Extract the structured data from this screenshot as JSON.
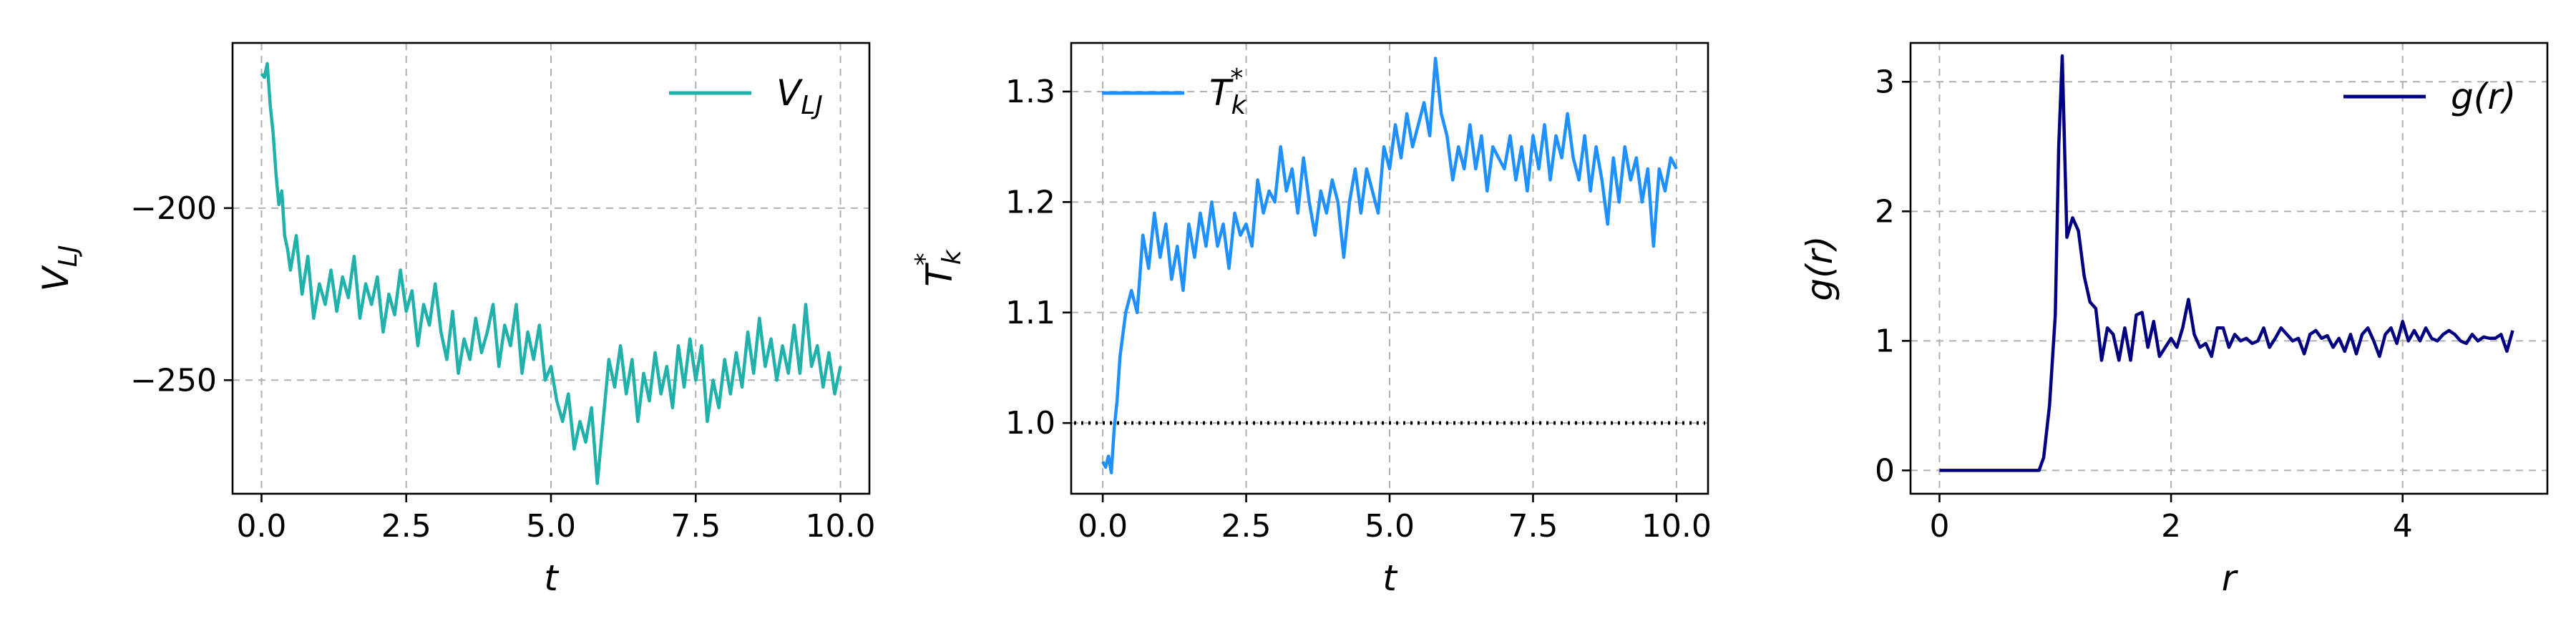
{
  "chart_data": [
    {
      "type": "line",
      "xlabel": "t",
      "ylabel": "V",
      "ylabel_sub": "LJ",
      "xlim": [
        -0.5,
        10.5
      ],
      "ylim": [
        -283,
        -152
      ],
      "xticks": [
        0.0,
        2.5,
        5.0,
        7.5,
        10.0
      ],
      "xtick_labels": [
        "0.0",
        "2.5",
        "5.0",
        "7.5",
        "10.0"
      ],
      "yticks": [
        -200,
        -250
      ],
      "ytick_labels": [
        "−200",
        "−250"
      ],
      "grid": true,
      "legend_position": "top-right",
      "series": [
        {
          "name": "V",
          "name_sub": "LJ",
          "color": "#20b2aa",
          "x": [
            0.0,
            0.05,
            0.1,
            0.15,
            0.2,
            0.25,
            0.3,
            0.35,
            0.4,
            0.45,
            0.5,
            0.6,
            0.7,
            0.8,
            0.9,
            1.0,
            1.1,
            1.2,
            1.3,
            1.4,
            1.5,
            1.6,
            1.7,
            1.8,
            1.9,
            2.0,
            2.1,
            2.2,
            2.3,
            2.4,
            2.5,
            2.6,
            2.7,
            2.8,
            2.9,
            3.0,
            3.1,
            3.2,
            3.3,
            3.4,
            3.5,
            3.6,
            3.7,
            3.8,
            3.9,
            4.0,
            4.1,
            4.2,
            4.3,
            4.4,
            4.5,
            4.6,
            4.7,
            4.8,
            4.9,
            5.0,
            5.1,
            5.2,
            5.3,
            5.4,
            5.5,
            5.6,
            5.7,
            5.8,
            5.9,
            6.0,
            6.1,
            6.2,
            6.3,
            6.4,
            6.5,
            6.6,
            6.7,
            6.8,
            6.9,
            7.0,
            7.1,
            7.2,
            7.3,
            7.4,
            7.5,
            7.6,
            7.7,
            7.8,
            7.9,
            8.0,
            8.1,
            8.2,
            8.3,
            8.4,
            8.5,
            8.6,
            8.7,
            8.8,
            8.9,
            9.0,
            9.1,
            9.2,
            9.3,
            9.4,
            9.5,
            9.6,
            9.7,
            9.8,
            9.9,
            10.0
          ],
          "y": [
            -161,
            -162,
            -158,
            -170,
            -178,
            -190,
            -199,
            -195,
            -208,
            -212,
            -218,
            -208,
            -225,
            -214,
            -232,
            -222,
            -228,
            -218,
            -230,
            -220,
            -226,
            -214,
            -232,
            -222,
            -228,
            -220,
            -236,
            -225,
            -231,
            -218,
            -230,
            -224,
            -240,
            -228,
            -234,
            -222,
            -236,
            -244,
            -230,
            -248,
            -238,
            -244,
            -232,
            -242,
            -236,
            -228,
            -246,
            -234,
            -240,
            -228,
            -248,
            -236,
            -244,
            -234,
            -250,
            -246,
            -256,
            -262,
            -254,
            -270,
            -262,
            -268,
            -258,
            -280,
            -262,
            -244,
            -252,
            -240,
            -254,
            -244,
            -262,
            -248,
            -256,
            -242,
            -254,
            -246,
            -258,
            -240,
            -252,
            -238,
            -250,
            -240,
            -262,
            -250,
            -258,
            -244,
            -254,
            -242,
            -252,
            -236,
            -248,
            -232,
            -246,
            -238,
            -250,
            -240,
            -248,
            -234,
            -248,
            -228,
            -246,
            -240,
            -252,
            -242,
            -254,
            -246
          ]
        }
      ]
    },
    {
      "type": "line",
      "xlabel": "t",
      "ylabel": "T",
      "ylabel_sub": "k",
      "ylabel_sup": "*",
      "xlim": [
        -0.55,
        10.55
      ],
      "ylim": [
        0.936,
        1.344
      ],
      "xticks": [
        0.0,
        2.5,
        5.0,
        7.5,
        10.0
      ],
      "xtick_labels": [
        "0.0",
        "2.5",
        "5.0",
        "7.5",
        "10.0"
      ],
      "yticks": [
        1.0,
        1.1,
        1.2,
        1.3
      ],
      "ytick_labels": [
        "1.0",
        "1.1",
        "1.2",
        "1.3"
      ],
      "grid": true,
      "legend_position": "top-left",
      "reference_line": {
        "y": 1.0,
        "x": [
          -0.5,
          10.5
        ],
        "color": "#000000",
        "style": "dotted"
      },
      "series": [
        {
          "name": "T",
          "name_sub": "k",
          "name_sup": "*",
          "color": "#1e90ff",
          "x": [
            0.0,
            0.05,
            0.1,
            0.15,
            0.2,
            0.25,
            0.3,
            0.35,
            0.4,
            0.5,
            0.6,
            0.7,
            0.8,
            0.9,
            1.0,
            1.1,
            1.2,
            1.3,
            1.4,
            1.5,
            1.6,
            1.7,
            1.8,
            1.9,
            2.0,
            2.1,
            2.2,
            2.3,
            2.4,
            2.5,
            2.6,
            2.7,
            2.8,
            2.9,
            3.0,
            3.1,
            3.2,
            3.3,
            3.4,
            3.5,
            3.6,
            3.7,
            3.8,
            3.9,
            4.0,
            4.1,
            4.2,
            4.3,
            4.4,
            4.5,
            4.6,
            4.7,
            4.8,
            4.9,
            5.0,
            5.1,
            5.2,
            5.3,
            5.4,
            5.5,
            5.6,
            5.7,
            5.8,
            5.9,
            6.0,
            6.1,
            6.2,
            6.3,
            6.4,
            6.5,
            6.6,
            6.7,
            6.8,
            6.9,
            7.0,
            7.1,
            7.2,
            7.3,
            7.4,
            7.5,
            7.6,
            7.7,
            7.8,
            7.9,
            8.0,
            8.1,
            8.2,
            8.3,
            8.4,
            8.5,
            8.6,
            8.7,
            8.8,
            8.9,
            9.0,
            9.1,
            9.2,
            9.3,
            9.4,
            9.5,
            9.6,
            9.7,
            9.8,
            9.9,
            10.0
          ],
          "y": [
            0.965,
            0.96,
            0.97,
            0.955,
            0.995,
            1.02,
            1.06,
            1.08,
            1.1,
            1.12,
            1.1,
            1.17,
            1.14,
            1.19,
            1.15,
            1.18,
            1.13,
            1.16,
            1.12,
            1.18,
            1.15,
            1.19,
            1.16,
            1.2,
            1.16,
            1.18,
            1.14,
            1.19,
            1.17,
            1.18,
            1.16,
            1.22,
            1.19,
            1.21,
            1.2,
            1.25,
            1.21,
            1.23,
            1.19,
            1.24,
            1.2,
            1.17,
            1.21,
            1.19,
            1.22,
            1.2,
            1.15,
            1.2,
            1.23,
            1.19,
            1.23,
            1.21,
            1.19,
            1.25,
            1.23,
            1.27,
            1.24,
            1.28,
            1.25,
            1.27,
            1.29,
            1.26,
            1.33,
            1.28,
            1.26,
            1.22,
            1.25,
            1.23,
            1.27,
            1.23,
            1.26,
            1.21,
            1.25,
            1.24,
            1.23,
            1.26,
            1.22,
            1.25,
            1.21,
            1.26,
            1.23,
            1.27,
            1.22,
            1.26,
            1.24,
            1.28,
            1.24,
            1.22,
            1.26,
            1.21,
            1.25,
            1.22,
            1.18,
            1.24,
            1.2,
            1.25,
            1.22,
            1.24,
            1.2,
            1.23,
            1.16,
            1.23,
            1.21,
            1.24,
            1.23
          ]
        }
      ]
    },
    {
      "type": "line",
      "xlabel": "r",
      "ylabel": "g(r)",
      "xlim": [
        -0.25,
        5.25
      ],
      "ylim": [
        -0.18,
        3.3
      ],
      "xticks": [
        0,
        2,
        4
      ],
      "xtick_labels": [
        "0",
        "2",
        "4"
      ],
      "yticks": [
        0,
        1,
        2,
        3
      ],
      "ytick_labels": [
        "0",
        "1",
        "2",
        "3"
      ],
      "grid": true,
      "legend_position": "top-right",
      "series": [
        {
          "name": "g(r)",
          "color": "#000080",
          "x": [
            0.0,
            0.2,
            0.4,
            0.6,
            0.8,
            0.86,
            0.9,
            0.95,
            1.0,
            1.03,
            1.06,
            1.1,
            1.15,
            1.2,
            1.25,
            1.3,
            1.35,
            1.4,
            1.45,
            1.5,
            1.55,
            1.6,
            1.65,
            1.7,
            1.75,
            1.8,
            1.85,
            1.9,
            1.95,
            2.0,
            2.05,
            2.1,
            2.15,
            2.2,
            2.25,
            2.3,
            2.35,
            2.4,
            2.45,
            2.5,
            2.55,
            2.6,
            2.65,
            2.7,
            2.75,
            2.8,
            2.85,
            2.9,
            2.95,
            3.0,
            3.05,
            3.1,
            3.15,
            3.2,
            3.25,
            3.3,
            3.35,
            3.4,
            3.45,
            3.5,
            3.55,
            3.6,
            3.65,
            3.7,
            3.75,
            3.8,
            3.85,
            3.9,
            3.95,
            4.0,
            4.05,
            4.1,
            4.15,
            4.2,
            4.25,
            4.3,
            4.35,
            4.4,
            4.45,
            4.5,
            4.55,
            4.6,
            4.65,
            4.7,
            4.75,
            4.8,
            4.85,
            4.9,
            4.95
          ],
          "y": [
            0.0,
            0.0,
            0.0,
            0.0,
            0.0,
            0.0,
            0.1,
            0.5,
            1.2,
            2.5,
            3.2,
            1.8,
            1.95,
            1.85,
            1.5,
            1.3,
            1.25,
            0.85,
            1.1,
            1.05,
            0.85,
            1.1,
            0.85,
            1.2,
            1.22,
            0.95,
            1.15,
            0.88,
            0.95,
            1.02,
            0.95,
            1.1,
            1.32,
            1.05,
            0.95,
            0.98,
            0.88,
            1.1,
            1.1,
            0.95,
            1.05,
            1.0,
            1.02,
            0.98,
            1.0,
            1.1,
            0.95,
            1.02,
            1.1,
            1.05,
            1.0,
            1.02,
            0.9,
            1.05,
            1.08,
            1.02,
            1.04,
            0.95,
            1.02,
            0.92,
            1.05,
            0.9,
            1.05,
            1.1,
            1.0,
            0.88,
            1.05,
            1.1,
            0.98,
            1.15,
            1.0,
            1.08,
            1.0,
            1.1,
            1.02,
            1.0,
            1.05,
            1.08,
            1.05,
            1.0,
            0.98,
            1.05,
            1.0,
            1.03,
            1.02,
            1.02,
            1.05,
            0.92,
            1.08
          ]
        }
      ]
    }
  ]
}
